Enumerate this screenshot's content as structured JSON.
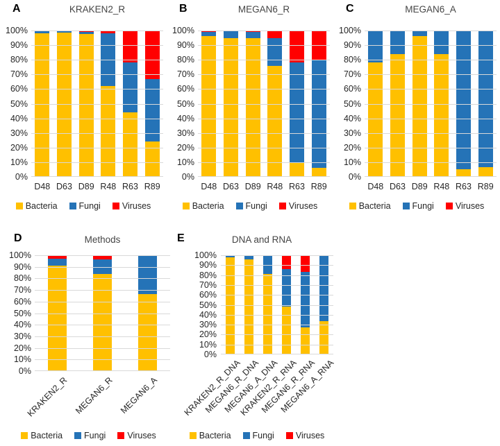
{
  "colors": {
    "bacteria": "#FFC000",
    "fungi": "#2573B7",
    "viruses": "#FF0000",
    "gridline": "#D9D9D9",
    "text": "#262626"
  },
  "chart_data": [
    {
      "type": "bar",
      "stacked": true,
      "panel_letter": "A",
      "title": "KRAKEN2_R",
      "categories": [
        "D48",
        "D63",
        "D89",
        "R48",
        "R63",
        "R89"
      ],
      "series": [
        {
          "name": "Bacteria",
          "color": "#FFC000",
          "values": [
            98,
            98.5,
            97.5,
            62,
            44,
            24
          ]
        },
        {
          "name": "Fungi",
          "color": "#2573B7",
          "values": [
            1.5,
            1,
            1.5,
            36,
            34,
            43
          ]
        },
        {
          "name": "Viruses",
          "color": "#FF0000",
          "values": [
            0.5,
            0.5,
            1,
            2,
            22,
            33
          ]
        }
      ],
      "ylim": [
        0,
        100
      ],
      "ytick_labels": [
        "100%",
        "90%",
        "80%",
        "70%",
        "60%",
        "50%",
        "40%",
        "30%",
        "20%",
        "10%",
        "0%"
      ],
      "grid": true,
      "legend": [
        "Bacteria",
        "Fungi",
        "Viruses"
      ],
      "legend_position": "bottom",
      "x_label_rotation": 0
    },
    {
      "type": "bar",
      "stacked": true,
      "panel_letter": "B",
      "title": "MEGAN6_R",
      "categories": [
        "D48",
        "D63",
        "D89",
        "R48",
        "R63",
        "R89"
      ],
      "series": [
        {
          "name": "Bacteria",
          "color": "#FFC000",
          "values": [
            96,
            95,
            95,
            76,
            10,
            6
          ]
        },
        {
          "name": "Fungi",
          "color": "#2573B7",
          "values": [
            3,
            4.5,
            4,
            19,
            68,
            74
          ]
        },
        {
          "name": "Viruses",
          "color": "#FF0000",
          "values": [
            1,
            0.5,
            1,
            5,
            22,
            20
          ]
        }
      ],
      "ylim": [
        0,
        100
      ],
      "ytick_labels": [
        "100%",
        "90%",
        "80%",
        "70%",
        "60%",
        "50%",
        "40%",
        "30%",
        "20%",
        "10%",
        "0%"
      ],
      "grid": true,
      "legend": [
        "Bacteria",
        "Fungi",
        "Viruses"
      ],
      "legend_position": "bottom",
      "x_label_rotation": 0
    },
    {
      "type": "bar",
      "stacked": true,
      "panel_letter": "C",
      "title": "MEGAN6_A",
      "categories": [
        "D48",
        "D63",
        "D89",
        "R48",
        "R63",
        "R89"
      ],
      "series": [
        {
          "name": "Bacteria",
          "color": "#FFC000",
          "values": [
            78,
            84,
            96,
            84,
            5,
            6.5
          ]
        },
        {
          "name": "Fungi",
          "color": "#2573B7",
          "values": [
            21.5,
            15.5,
            3.5,
            15.5,
            94.5,
            93
          ]
        },
        {
          "name": "Viruses",
          "color": "#FF0000",
          "values": [
            0.5,
            0.5,
            0.5,
            0.5,
            0.5,
            0.5
          ]
        }
      ],
      "ylim": [
        0,
        100
      ],
      "ytick_labels": [
        "100%",
        "90%",
        "80%",
        "70%",
        "60%",
        "50%",
        "40%",
        "30%",
        "20%",
        "10%",
        "0%"
      ],
      "grid": true,
      "legend": [
        "Bacteria",
        "Fungi",
        "Viruses"
      ],
      "legend_position": "bottom",
      "x_label_rotation": 0
    },
    {
      "type": "bar",
      "stacked": true,
      "panel_letter": "D",
      "title": "Methods",
      "categories": [
        "KRAKEN2_R",
        "MEGAN6_R",
        "MEGAN6_A"
      ],
      "series": [
        {
          "name": "Bacteria",
          "color": "#FFC000",
          "values": [
            91,
            84,
            66.5
          ]
        },
        {
          "name": "Fungi",
          "color": "#2573B7",
          "values": [
            6,
            12.5,
            33
          ]
        },
        {
          "name": "Viruses",
          "color": "#FF0000",
          "values": [
            3,
            3.5,
            0.5
          ]
        }
      ],
      "ylim": [
        0,
        100
      ],
      "ytick_labels": [
        "100%",
        "90%",
        "80%",
        "70%",
        "60%",
        "50%",
        "40%",
        "30%",
        "20%",
        "10%",
        "0%"
      ],
      "grid": true,
      "legend": [
        "Bacteria",
        "Fungi",
        "Viruses"
      ],
      "legend_position": "bottom",
      "x_label_rotation": 45
    },
    {
      "type": "bar",
      "stacked": true,
      "panel_letter": "E",
      "title": "DNA  and RNA",
      "categories": [
        "KRAKEN2_R_DNA",
        "MEGAN6_R_DNA",
        "MEGAN6_A_DNA",
        "KRAKEN2_R_RNA",
        "MEGAN6_R_RNA",
        "MEGAN6_A_RNA"
      ],
      "series": [
        {
          "name": "Bacteria",
          "color": "#FFC000",
          "values": [
            98,
            96,
            81,
            48.5,
            27.5,
            33.5
          ]
        },
        {
          "name": "Fungi",
          "color": "#2573B7",
          "values": [
            1.5,
            3,
            18.5,
            37.5,
            56,
            66
          ]
        },
        {
          "name": "Viruses",
          "color": "#FF0000",
          "values": [
            0.5,
            1,
            0.5,
            14,
            16.5,
            0.5
          ]
        }
      ],
      "ylim": [
        0,
        100
      ],
      "ytick_labels": [
        "100%",
        "90%",
        "80%",
        "70%",
        "60%",
        "50%",
        "40%",
        "30%",
        "20%",
        "10%",
        "0%"
      ],
      "grid": true,
      "legend": [
        "Bacteria",
        "Fungi",
        "Viruses"
      ],
      "legend_position": "bottom",
      "x_label_rotation": 45
    }
  ]
}
